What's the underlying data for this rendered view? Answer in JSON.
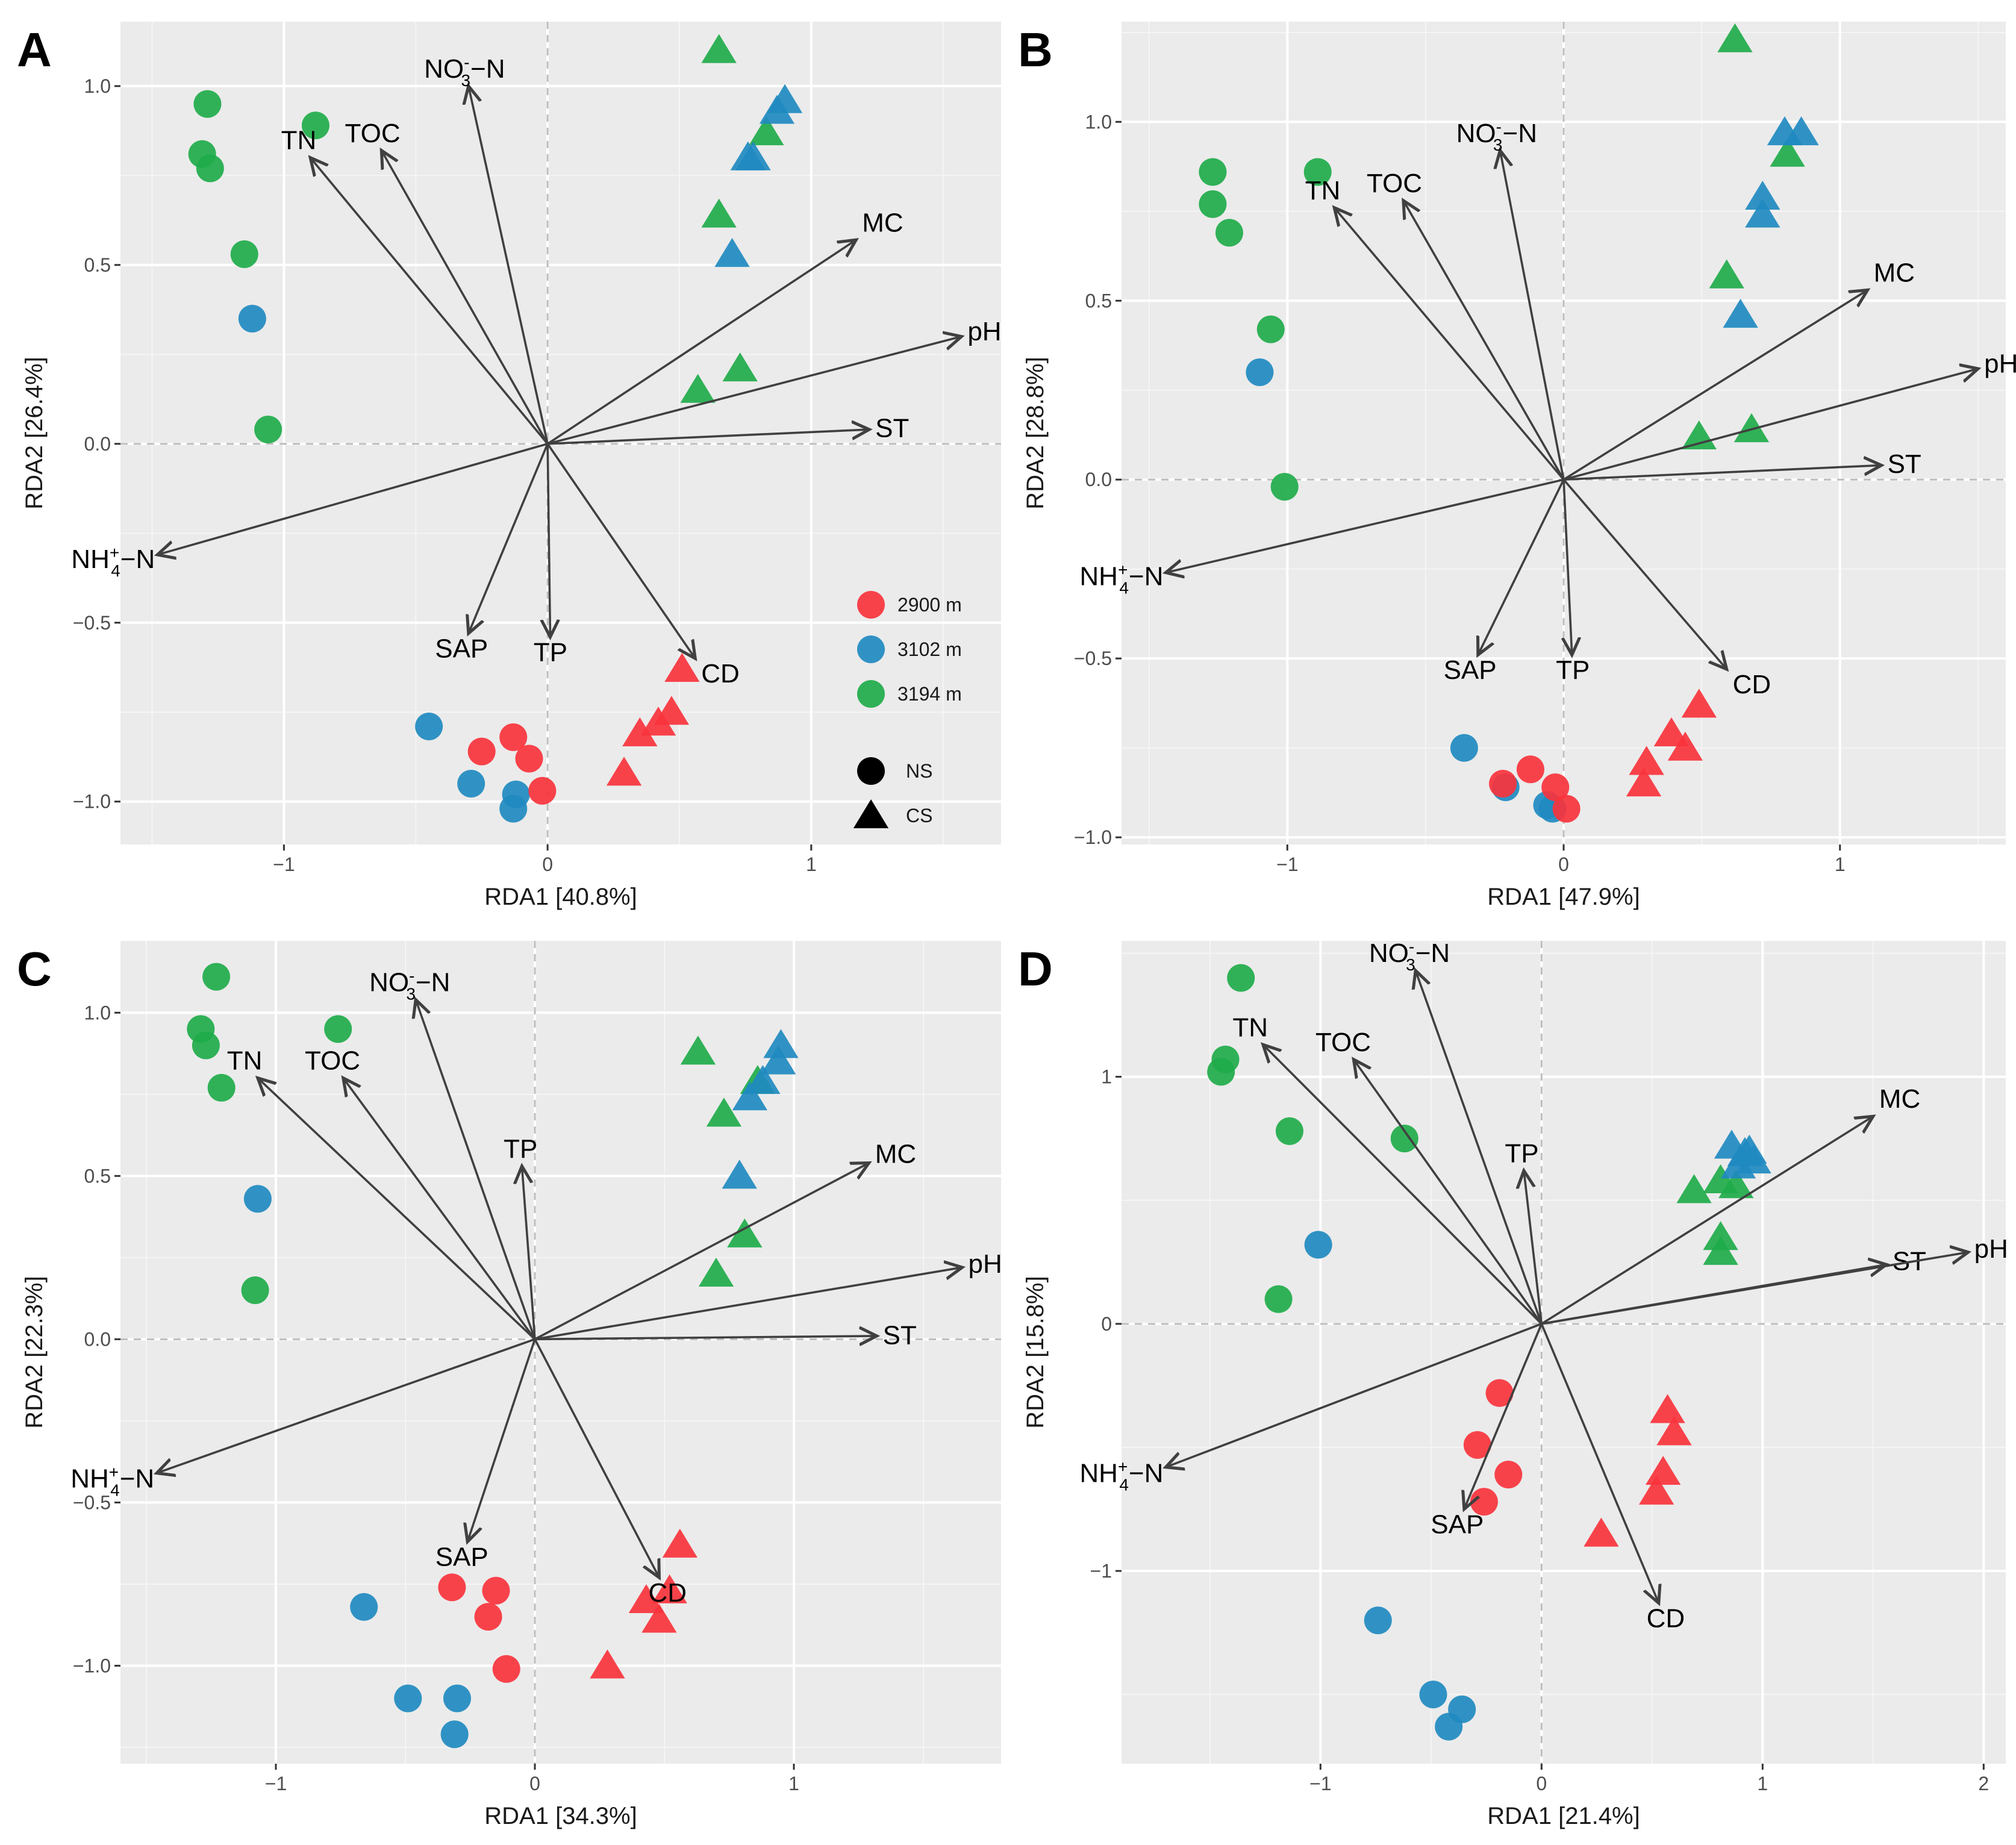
{
  "colors": {
    "2900 m": "#f8333c",
    "3102 m": "#1f8ac0",
    "3194 m": "#1fab4a",
    "panel_bg": "#ebebeb",
    "grid_major": "#ffffff",
    "arrow": "#404040"
  },
  "legend": {
    "altitudes": [
      "2900 m",
      "3102 m",
      "3194 m"
    ],
    "sites": [
      {
        "label": "NS",
        "shape": "circle"
      },
      {
        "label": "CS",
        "shape": "triangle"
      }
    ]
  },
  "chart_data": [
    {
      "type": "scatter",
      "panel": "A",
      "xlabel": "RDA1 [40.8%]",
      "ylabel": "RDA2 [26.4%]",
      "xlim": [
        -1.62,
        1.72
      ],
      "ylim": [
        -1.12,
        1.18
      ],
      "xticks": [
        -1,
        0,
        1
      ],
      "yticks": [
        -1.0,
        -0.5,
        0.0,
        0.5,
        1.0
      ],
      "show_legend": true,
      "arrows": [
        {
          "label": "NO-3-N",
          "x": -0.3,
          "y": 1.0
        },
        {
          "label": "TN",
          "x": -0.9,
          "y": 0.8
        },
        {
          "label": "TOC",
          "x": -0.63,
          "y": 0.82
        },
        {
          "label": "MC",
          "x": 1.17,
          "y": 0.57
        },
        {
          "label": "pH",
          "x": 1.57,
          "y": 0.3
        },
        {
          "label": "ST",
          "x": 1.22,
          "y": 0.04
        },
        {
          "label": "NH+4-N",
          "x": -1.48,
          "y": -0.31
        },
        {
          "label": "SAP",
          "x": -0.3,
          "y": -0.53
        },
        {
          "label": "TP",
          "x": 0.01,
          "y": -0.54
        },
        {
          "label": "CD",
          "x": 0.56,
          "y": -0.6
        }
      ],
      "points": [
        {
          "group": "3194 m",
          "site": "NS",
          "x": -1.29,
          "y": 0.95
        },
        {
          "group": "3194 m",
          "site": "NS",
          "x": -1.31,
          "y": 0.81
        },
        {
          "group": "3194 m",
          "site": "NS",
          "x": -1.28,
          "y": 0.77
        },
        {
          "group": "3194 m",
          "site": "NS",
          "x": -1.15,
          "y": 0.53
        },
        {
          "group": "3194 m",
          "site": "NS",
          "x": -1.06,
          "y": 0.04
        },
        {
          "group": "3194 m",
          "site": "NS",
          "x": -0.88,
          "y": 0.89
        },
        {
          "group": "3102 m",
          "site": "NS",
          "x": -1.12,
          "y": 0.35
        },
        {
          "group": "3102 m",
          "site": "NS",
          "x": -0.45,
          "y": -0.79
        },
        {
          "group": "3102 m",
          "site": "NS",
          "x": -0.29,
          "y": -0.95
        },
        {
          "group": "3102 m",
          "site": "NS",
          "x": -0.12,
          "y": -0.98
        },
        {
          "group": "3102 m",
          "site": "NS",
          "x": -0.13,
          "y": -1.02
        },
        {
          "group": "2900 m",
          "site": "NS",
          "x": -0.25,
          "y": -0.86
        },
        {
          "group": "2900 m",
          "site": "NS",
          "x": -0.13,
          "y": -0.82
        },
        {
          "group": "2900 m",
          "site": "NS",
          "x": -0.07,
          "y": -0.88
        },
        {
          "group": "2900 m",
          "site": "NS",
          "x": -0.02,
          "y": -0.97
        },
        {
          "group": "3194 m",
          "site": "CS",
          "x": 0.65,
          "y": 1.1
        },
        {
          "group": "3194 m",
          "site": "CS",
          "x": 0.83,
          "y": 0.87
        },
        {
          "group": "3194 m",
          "site": "CS",
          "x": 0.65,
          "y": 0.64
        },
        {
          "group": "3194 m",
          "site": "CS",
          "x": 0.73,
          "y": 0.21
        },
        {
          "group": "3194 m",
          "site": "CS",
          "x": 0.57,
          "y": 0.15
        },
        {
          "group": "3102 m",
          "site": "CS",
          "x": 0.9,
          "y": 0.96
        },
        {
          "group": "3102 m",
          "site": "CS",
          "x": 0.87,
          "y": 0.93
        },
        {
          "group": "3102 m",
          "site": "CS",
          "x": 0.78,
          "y": 0.8
        },
        {
          "group": "3102 m",
          "site": "CS",
          "x": 0.76,
          "y": 0.8
        },
        {
          "group": "3102 m",
          "site": "CS",
          "x": 0.7,
          "y": 0.53
        },
        {
          "group": "2900 m",
          "site": "CS",
          "x": 0.51,
          "y": -0.63
        },
        {
          "group": "2900 m",
          "site": "CS",
          "x": 0.47,
          "y": -0.75
        },
        {
          "group": "2900 m",
          "site": "CS",
          "x": 0.42,
          "y": -0.78
        },
        {
          "group": "2900 m",
          "site": "CS",
          "x": 0.35,
          "y": -0.81
        },
        {
          "group": "2900 m",
          "site": "CS",
          "x": 0.29,
          "y": -0.92
        }
      ]
    },
    {
      "type": "scatter",
      "panel": "B",
      "xlabel": "RDA1 [47.9%]",
      "ylabel": "RDA2 [28.8%]",
      "xlim": [
        -1.6,
        1.6
      ],
      "ylim": [
        -1.02,
        1.28
      ],
      "xticks": [
        -1,
        0,
        1
      ],
      "yticks": [
        -1.0,
        -0.5,
        0.0,
        0.5,
        1.0
      ],
      "show_legend": false,
      "arrows": [
        {
          "label": "NO-3-N",
          "x": -0.23,
          "y": 0.92
        },
        {
          "label": "TN",
          "x": -0.83,
          "y": 0.76
        },
        {
          "label": "TOC",
          "x": -0.58,
          "y": 0.78
        },
        {
          "label": "MC",
          "x": 1.1,
          "y": 0.53
        },
        {
          "label": "pH",
          "x": 1.5,
          "y": 0.31
        },
        {
          "label": "ST",
          "x": 1.15,
          "y": 0.04
        },
        {
          "label": "NH+4-N",
          "x": -1.44,
          "y": -0.26
        },
        {
          "label": "SAP",
          "x": -0.31,
          "y": -0.49
        },
        {
          "label": "TP",
          "x": 0.03,
          "y": -0.49
        },
        {
          "label": "CD",
          "x": 0.59,
          "y": -0.53
        }
      ],
      "points": [
        {
          "group": "3194 m",
          "site": "NS",
          "x": -1.27,
          "y": 0.86
        },
        {
          "group": "3194 m",
          "site": "NS",
          "x": -1.27,
          "y": 0.77
        },
        {
          "group": "3194 m",
          "site": "NS",
          "x": -1.21,
          "y": 0.69
        },
        {
          "group": "3194 m",
          "site": "NS",
          "x": -1.06,
          "y": 0.42
        },
        {
          "group": "3194 m",
          "site": "NS",
          "x": -1.01,
          "y": -0.02
        },
        {
          "group": "3194 m",
          "site": "NS",
          "x": -0.89,
          "y": 0.86
        },
        {
          "group": "3102 m",
          "site": "NS",
          "x": -1.1,
          "y": 0.3
        },
        {
          "group": "3102 m",
          "site": "NS",
          "x": -0.36,
          "y": -0.75
        },
        {
          "group": "3102 m",
          "site": "NS",
          "x": -0.21,
          "y": -0.86
        },
        {
          "group": "3102 m",
          "site": "NS",
          "x": -0.06,
          "y": -0.91
        },
        {
          "group": "3102 m",
          "site": "NS",
          "x": -0.04,
          "y": -0.92
        },
        {
          "group": "2900 m",
          "site": "NS",
          "x": -0.22,
          "y": -0.85
        },
        {
          "group": "2900 m",
          "site": "NS",
          "x": -0.12,
          "y": -0.81
        },
        {
          "group": "2900 m",
          "site": "NS",
          "x": -0.03,
          "y": -0.86
        },
        {
          "group": "2900 m",
          "site": "NS",
          "x": 0.01,
          "y": -0.92
        },
        {
          "group": "3194 m",
          "site": "CS",
          "x": 0.62,
          "y": 1.23
        },
        {
          "group": "3194 m",
          "site": "CS",
          "x": 0.81,
          "y": 0.91
        },
        {
          "group": "3194 m",
          "site": "CS",
          "x": 0.59,
          "y": 0.57
        },
        {
          "group": "3194 m",
          "site": "CS",
          "x": 0.68,
          "y": 0.14
        },
        {
          "group": "3194 m",
          "site": "CS",
          "x": 0.49,
          "y": 0.12
        },
        {
          "group": "3102 m",
          "site": "CS",
          "x": 0.86,
          "y": 0.97
        },
        {
          "group": "3102 m",
          "site": "CS",
          "x": 0.8,
          "y": 0.97
        },
        {
          "group": "3102 m",
          "site": "CS",
          "x": 0.72,
          "y": 0.79
        },
        {
          "group": "3102 m",
          "site": "CS",
          "x": 0.72,
          "y": 0.74
        },
        {
          "group": "3102 m",
          "site": "CS",
          "x": 0.64,
          "y": 0.46
        },
        {
          "group": "2900 m",
          "site": "CS",
          "x": 0.49,
          "y": -0.63
        },
        {
          "group": "2900 m",
          "site": "CS",
          "x": 0.39,
          "y": -0.71
        },
        {
          "group": "2900 m",
          "site": "CS",
          "x": 0.44,
          "y": -0.75
        },
        {
          "group": "2900 m",
          "site": "CS",
          "x": 0.3,
          "y": -0.79
        },
        {
          "group": "2900 m",
          "site": "CS",
          "x": 0.29,
          "y": -0.85
        }
      ]
    },
    {
      "type": "scatter",
      "panel": "C",
      "xlabel": "RDA1 [34.3%]",
      "ylabel": "RDA2 [22.3%]",
      "xlim": [
        -1.6,
        1.8
      ],
      "ylim": [
        -1.3,
        1.22
      ],
      "xticks": [
        -1,
        0,
        1
      ],
      "yticks": [
        -1.0,
        -0.5,
        0.0,
        0.5,
        1.0
      ],
      "show_legend": false,
      "arrows": [
        {
          "label": "NO-3-N",
          "x": -0.46,
          "y": 1.04
        },
        {
          "label": "TN",
          "x": -1.07,
          "y": 0.8
        },
        {
          "label": "TOC",
          "x": -0.74,
          "y": 0.8
        },
        {
          "label": "TP",
          "x": -0.05,
          "y": 0.53
        },
        {
          "label": "MC",
          "x": 1.29,
          "y": 0.54
        },
        {
          "label": "pH",
          "x": 1.65,
          "y": 0.22
        },
        {
          "label": "ST",
          "x": 1.32,
          "y": 0.01
        },
        {
          "label": "NH+4-N",
          "x": -1.46,
          "y": -0.41
        },
        {
          "label": "SAP",
          "x": -0.26,
          "y": -0.62
        },
        {
          "label": "CD",
          "x": 0.48,
          "y": -0.73
        }
      ],
      "points": [
        {
          "group": "3194 m",
          "site": "NS",
          "x": -1.23,
          "y": 1.11
        },
        {
          "group": "3194 m",
          "site": "NS",
          "x": -1.29,
          "y": 0.95
        },
        {
          "group": "3194 m",
          "site": "NS",
          "x": -1.27,
          "y": 0.9
        },
        {
          "group": "3194 m",
          "site": "NS",
          "x": -1.21,
          "y": 0.77
        },
        {
          "group": "3194 m",
          "site": "NS",
          "x": -1.08,
          "y": 0.15
        },
        {
          "group": "3194 m",
          "site": "NS",
          "x": -0.76,
          "y": 0.95
        },
        {
          "group": "3102 m",
          "site": "NS",
          "x": -1.07,
          "y": 0.43
        },
        {
          "group": "3102 m",
          "site": "NS",
          "x": -0.66,
          "y": -0.82
        },
        {
          "group": "3102 m",
          "site": "NS",
          "x": -0.49,
          "y": -1.1
        },
        {
          "group": "3102 m",
          "site": "NS",
          "x": -0.3,
          "y": -1.1
        },
        {
          "group": "3102 m",
          "site": "NS",
          "x": -0.31,
          "y": -1.21
        },
        {
          "group": "2900 m",
          "site": "NS",
          "x": -0.32,
          "y": -0.76
        },
        {
          "group": "2900 m",
          "site": "NS",
          "x": -0.15,
          "y": -0.77
        },
        {
          "group": "2900 m",
          "site": "NS",
          "x": -0.18,
          "y": -0.85
        },
        {
          "group": "2900 m",
          "site": "NS",
          "x": -0.11,
          "y": -1.01
        },
        {
          "group": "3194 m",
          "site": "CS",
          "x": 0.63,
          "y": 0.88
        },
        {
          "group": "3194 m",
          "site": "CS",
          "x": 0.86,
          "y": 0.79
        },
        {
          "group": "3194 m",
          "site": "CS",
          "x": 0.73,
          "y": 0.69
        },
        {
          "group": "3194 m",
          "site": "CS",
          "x": 0.81,
          "y": 0.32
        },
        {
          "group": "3194 m",
          "site": "CS",
          "x": 0.7,
          "y": 0.2
        },
        {
          "group": "3102 m",
          "site": "CS",
          "x": 0.95,
          "y": 0.9
        },
        {
          "group": "3102 m",
          "site": "CS",
          "x": 0.94,
          "y": 0.85
        },
        {
          "group": "3102 m",
          "site": "CS",
          "x": 0.88,
          "y": 0.79
        },
        {
          "group": "3102 m",
          "site": "CS",
          "x": 0.83,
          "y": 0.74
        },
        {
          "group": "3102 m",
          "site": "CS",
          "x": 0.79,
          "y": 0.5
        },
        {
          "group": "2900 m",
          "site": "CS",
          "x": 0.56,
          "y": -0.63
        },
        {
          "group": "2900 m",
          "site": "CS",
          "x": 0.52,
          "y": -0.77
        },
        {
          "group": "2900 m",
          "site": "CS",
          "x": 0.43,
          "y": -0.8
        },
        {
          "group": "2900 m",
          "site": "CS",
          "x": 0.48,
          "y": -0.86
        },
        {
          "group": "2900 m",
          "site": "CS",
          "x": 0.28,
          "y": -1.0
        }
      ]
    },
    {
      "type": "scatter",
      "panel": "D",
      "xlabel": "RDA1 [21.4%]",
      "ylabel": "RDA2 [15.8%]",
      "xlim": [
        -1.9,
        2.1
      ],
      "ylim": [
        -1.78,
        1.55
      ],
      "xticks": [
        -1,
        0,
        1,
        2
      ],
      "yticks": [
        -1,
        0,
        1
      ],
      "show_legend": false,
      "arrows": [
        {
          "label": "NO-3-N",
          "x": -0.57,
          "y": 1.43
        },
        {
          "label": "TN",
          "x": -1.26,
          "y": 1.13
        },
        {
          "label": "TOC",
          "x": -0.85,
          "y": 1.07
        },
        {
          "label": "TP",
          "x": -0.08,
          "y": 0.62
        },
        {
          "label": "MC",
          "x": 1.5,
          "y": 0.84
        },
        {
          "label": "ST",
          "x": 1.56,
          "y": 0.24
        },
        {
          "label": "pH",
          "x": 1.93,
          "y": 0.29
        },
        {
          "label": "NH+4-N",
          "x": -1.7,
          "y": -0.58
        },
        {
          "label": "SAP",
          "x": -0.35,
          "y": -0.75
        },
        {
          "label": "CD",
          "x": 0.53,
          "y": -1.13
        }
      ],
      "points": [
        {
          "group": "3194 m",
          "site": "NS",
          "x": -1.36,
          "y": 1.4
        },
        {
          "group": "3194 m",
          "site": "NS",
          "x": -1.43,
          "y": 1.07
        },
        {
          "group": "3194 m",
          "site": "NS",
          "x": -1.45,
          "y": 1.02
        },
        {
          "group": "3194 m",
          "site": "NS",
          "x": -1.14,
          "y": 0.78
        },
        {
          "group": "3194 m",
          "site": "NS",
          "x": -1.19,
          "y": 0.1
        },
        {
          "group": "3194 m",
          "site": "NS",
          "x": -0.62,
          "y": 0.75
        },
        {
          "group": "3102 m",
          "site": "NS",
          "x": -1.01,
          "y": 0.32
        },
        {
          "group": "3102 m",
          "site": "NS",
          "x": -0.74,
          "y": -1.2
        },
        {
          "group": "3102 m",
          "site": "NS",
          "x": -0.49,
          "y": -1.5
        },
        {
          "group": "3102 m",
          "site": "NS",
          "x": -0.36,
          "y": -1.56
        },
        {
          "group": "3102 m",
          "site": "NS",
          "x": -0.42,
          "y": -1.63
        },
        {
          "group": "2900 m",
          "site": "NS",
          "x": -0.19,
          "y": -0.28
        },
        {
          "group": "2900 m",
          "site": "NS",
          "x": -0.29,
          "y": -0.49
        },
        {
          "group": "2900 m",
          "site": "NS",
          "x": -0.15,
          "y": -0.61
        },
        {
          "group": "2900 m",
          "site": "NS",
          "x": -0.26,
          "y": -0.72
        },
        {
          "group": "3194 m",
          "site": "CS",
          "x": 0.69,
          "y": 0.54
        },
        {
          "group": "3194 m",
          "site": "CS",
          "x": 0.88,
          "y": 0.56
        },
        {
          "group": "3194 m",
          "site": "CS",
          "x": 0.81,
          "y": 0.58
        },
        {
          "group": "3194 m",
          "site": "CS",
          "x": 0.81,
          "y": 0.35
        },
        {
          "group": "3194 m",
          "site": "CS",
          "x": 0.81,
          "y": 0.29
        },
        {
          "group": "3102 m",
          "site": "CS",
          "x": 0.86,
          "y": 0.72
        },
        {
          "group": "3102 m",
          "site": "CS",
          "x": 0.92,
          "y": 0.69
        },
        {
          "group": "3102 m",
          "site": "CS",
          "x": 0.96,
          "y": 0.66
        },
        {
          "group": "3102 m",
          "site": "CS",
          "x": 0.89,
          "y": 0.64
        },
        {
          "group": "3102 m",
          "site": "CS",
          "x": 0.94,
          "y": 0.7
        },
        {
          "group": "2900 m",
          "site": "CS",
          "x": 0.57,
          "y": -0.35
        },
        {
          "group": "2900 m",
          "site": "CS",
          "x": 0.6,
          "y": -0.44
        },
        {
          "group": "2900 m",
          "site": "CS",
          "x": 0.55,
          "y": -0.6
        },
        {
          "group": "2900 m",
          "site": "CS",
          "x": 0.52,
          "y": -0.68
        },
        {
          "group": "2900 m",
          "site": "CS",
          "x": 0.27,
          "y": -0.85
        }
      ]
    }
  ]
}
